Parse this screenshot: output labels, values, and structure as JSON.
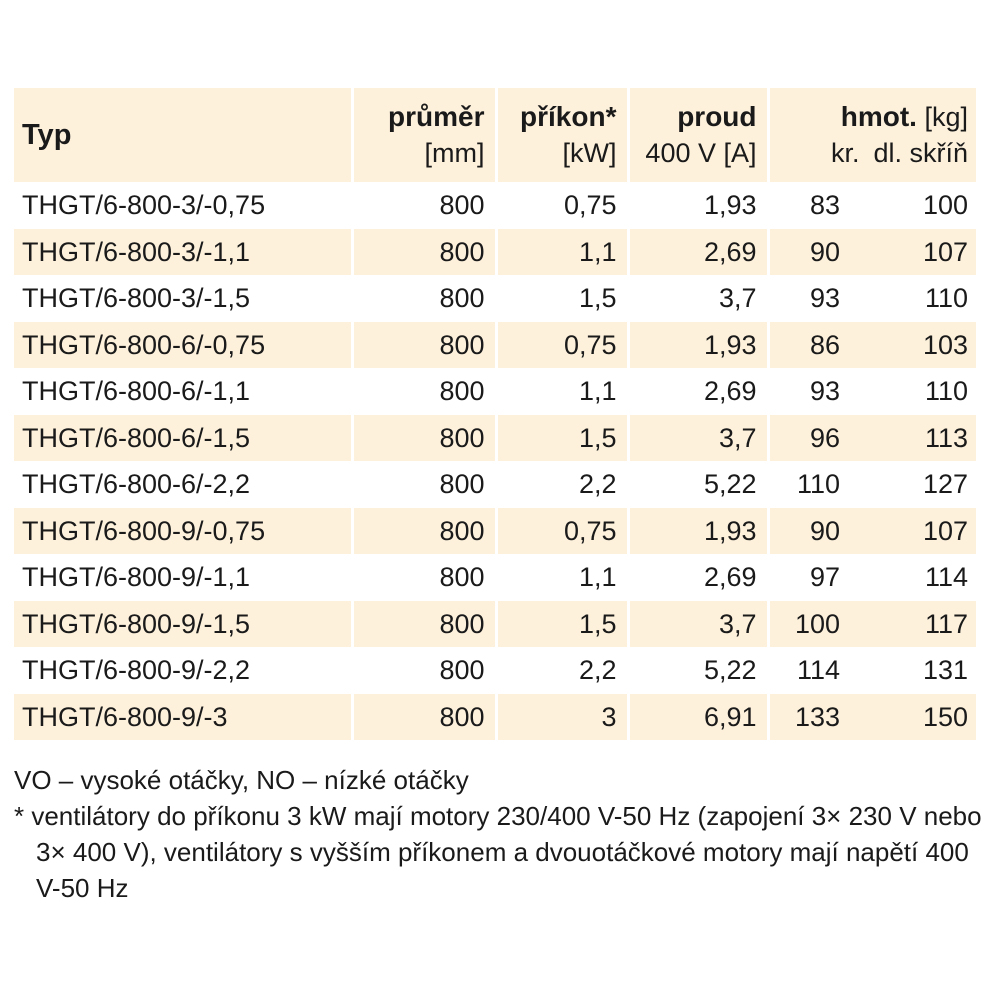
{
  "header": {
    "typ": "Typ",
    "prumer": "průměr",
    "prumer_unit": "[mm]",
    "prikon": "příkon*",
    "prikon_unit": "[kW]",
    "proud": "proud",
    "proud_unit": "400 V [A]",
    "hmot": "hmot.",
    "hmot_unit": "[kg]",
    "kr": "kr.",
    "dl": "dl. skříň"
  },
  "rows": [
    {
      "typ": "THGT/6-800-3/-0,75",
      "prumer": "800",
      "prikon": "0,75",
      "proud": "1,93",
      "kr": "83",
      "dl": "100"
    },
    {
      "typ": "THGT/6-800-3/-1,1",
      "prumer": "800",
      "prikon": "1,1",
      "proud": "2,69",
      "kr": "90",
      "dl": "107"
    },
    {
      "typ": "THGT/6-800-3/-1,5",
      "prumer": "800",
      "prikon": "1,5",
      "proud": "3,7",
      "kr": "93",
      "dl": "110"
    },
    {
      "typ": "THGT/6-800-6/-0,75",
      "prumer": "800",
      "prikon": "0,75",
      "proud": "1,93",
      "kr": "86",
      "dl": "103"
    },
    {
      "typ": "THGT/6-800-6/-1,1",
      "prumer": "800",
      "prikon": "1,1",
      "proud": "2,69",
      "kr": "93",
      "dl": "110"
    },
    {
      "typ": "THGT/6-800-6/-1,5",
      "prumer": "800",
      "prikon": "1,5",
      "proud": "3,7",
      "kr": "96",
      "dl": "113"
    },
    {
      "typ": "THGT/6-800-6/-2,2",
      "prumer": "800",
      "prikon": "2,2",
      "proud": "5,22",
      "kr": "110",
      "dl": "127"
    },
    {
      "typ": "THGT/6-800-9/-0,75",
      "prumer": "800",
      "prikon": "0,75",
      "proud": "1,93",
      "kr": "90",
      "dl": "107"
    },
    {
      "typ": "THGT/6-800-9/-1,1",
      "prumer": "800",
      "prikon": "1,1",
      "proud": "2,69",
      "kr": "97",
      "dl": "114"
    },
    {
      "typ": "THGT/6-800-9/-1,5",
      "prumer": "800",
      "prikon": "1,5",
      "proud": "3,7",
      "kr": "100",
      "dl": "117"
    },
    {
      "typ": "THGT/6-800-9/-2,2",
      "prumer": "800",
      "prikon": "2,2",
      "proud": "5,22",
      "kr": "114",
      "dl": "131"
    },
    {
      "typ": "THGT/6-800-9/-3",
      "prumer": "800",
      "prikon": "3",
      "proud": "6,91",
      "kr": "133",
      "dl": "150"
    }
  ],
  "notes": {
    "legend": "VO – vysoké otáčky, NO – nízké otáčky",
    "footnote": "* ventilátory do příkonu 3 kW mají motory 230/400 V-50 Hz (zapojení 3× 230 V nebo 3× 400 V), ventilátory s vyšším příkonem a dvouotáčkové motory mají napětí 400 V-50 Hz"
  },
  "colors": {
    "stripe": "#fdf1dc",
    "text": "#1a1a1a"
  }
}
